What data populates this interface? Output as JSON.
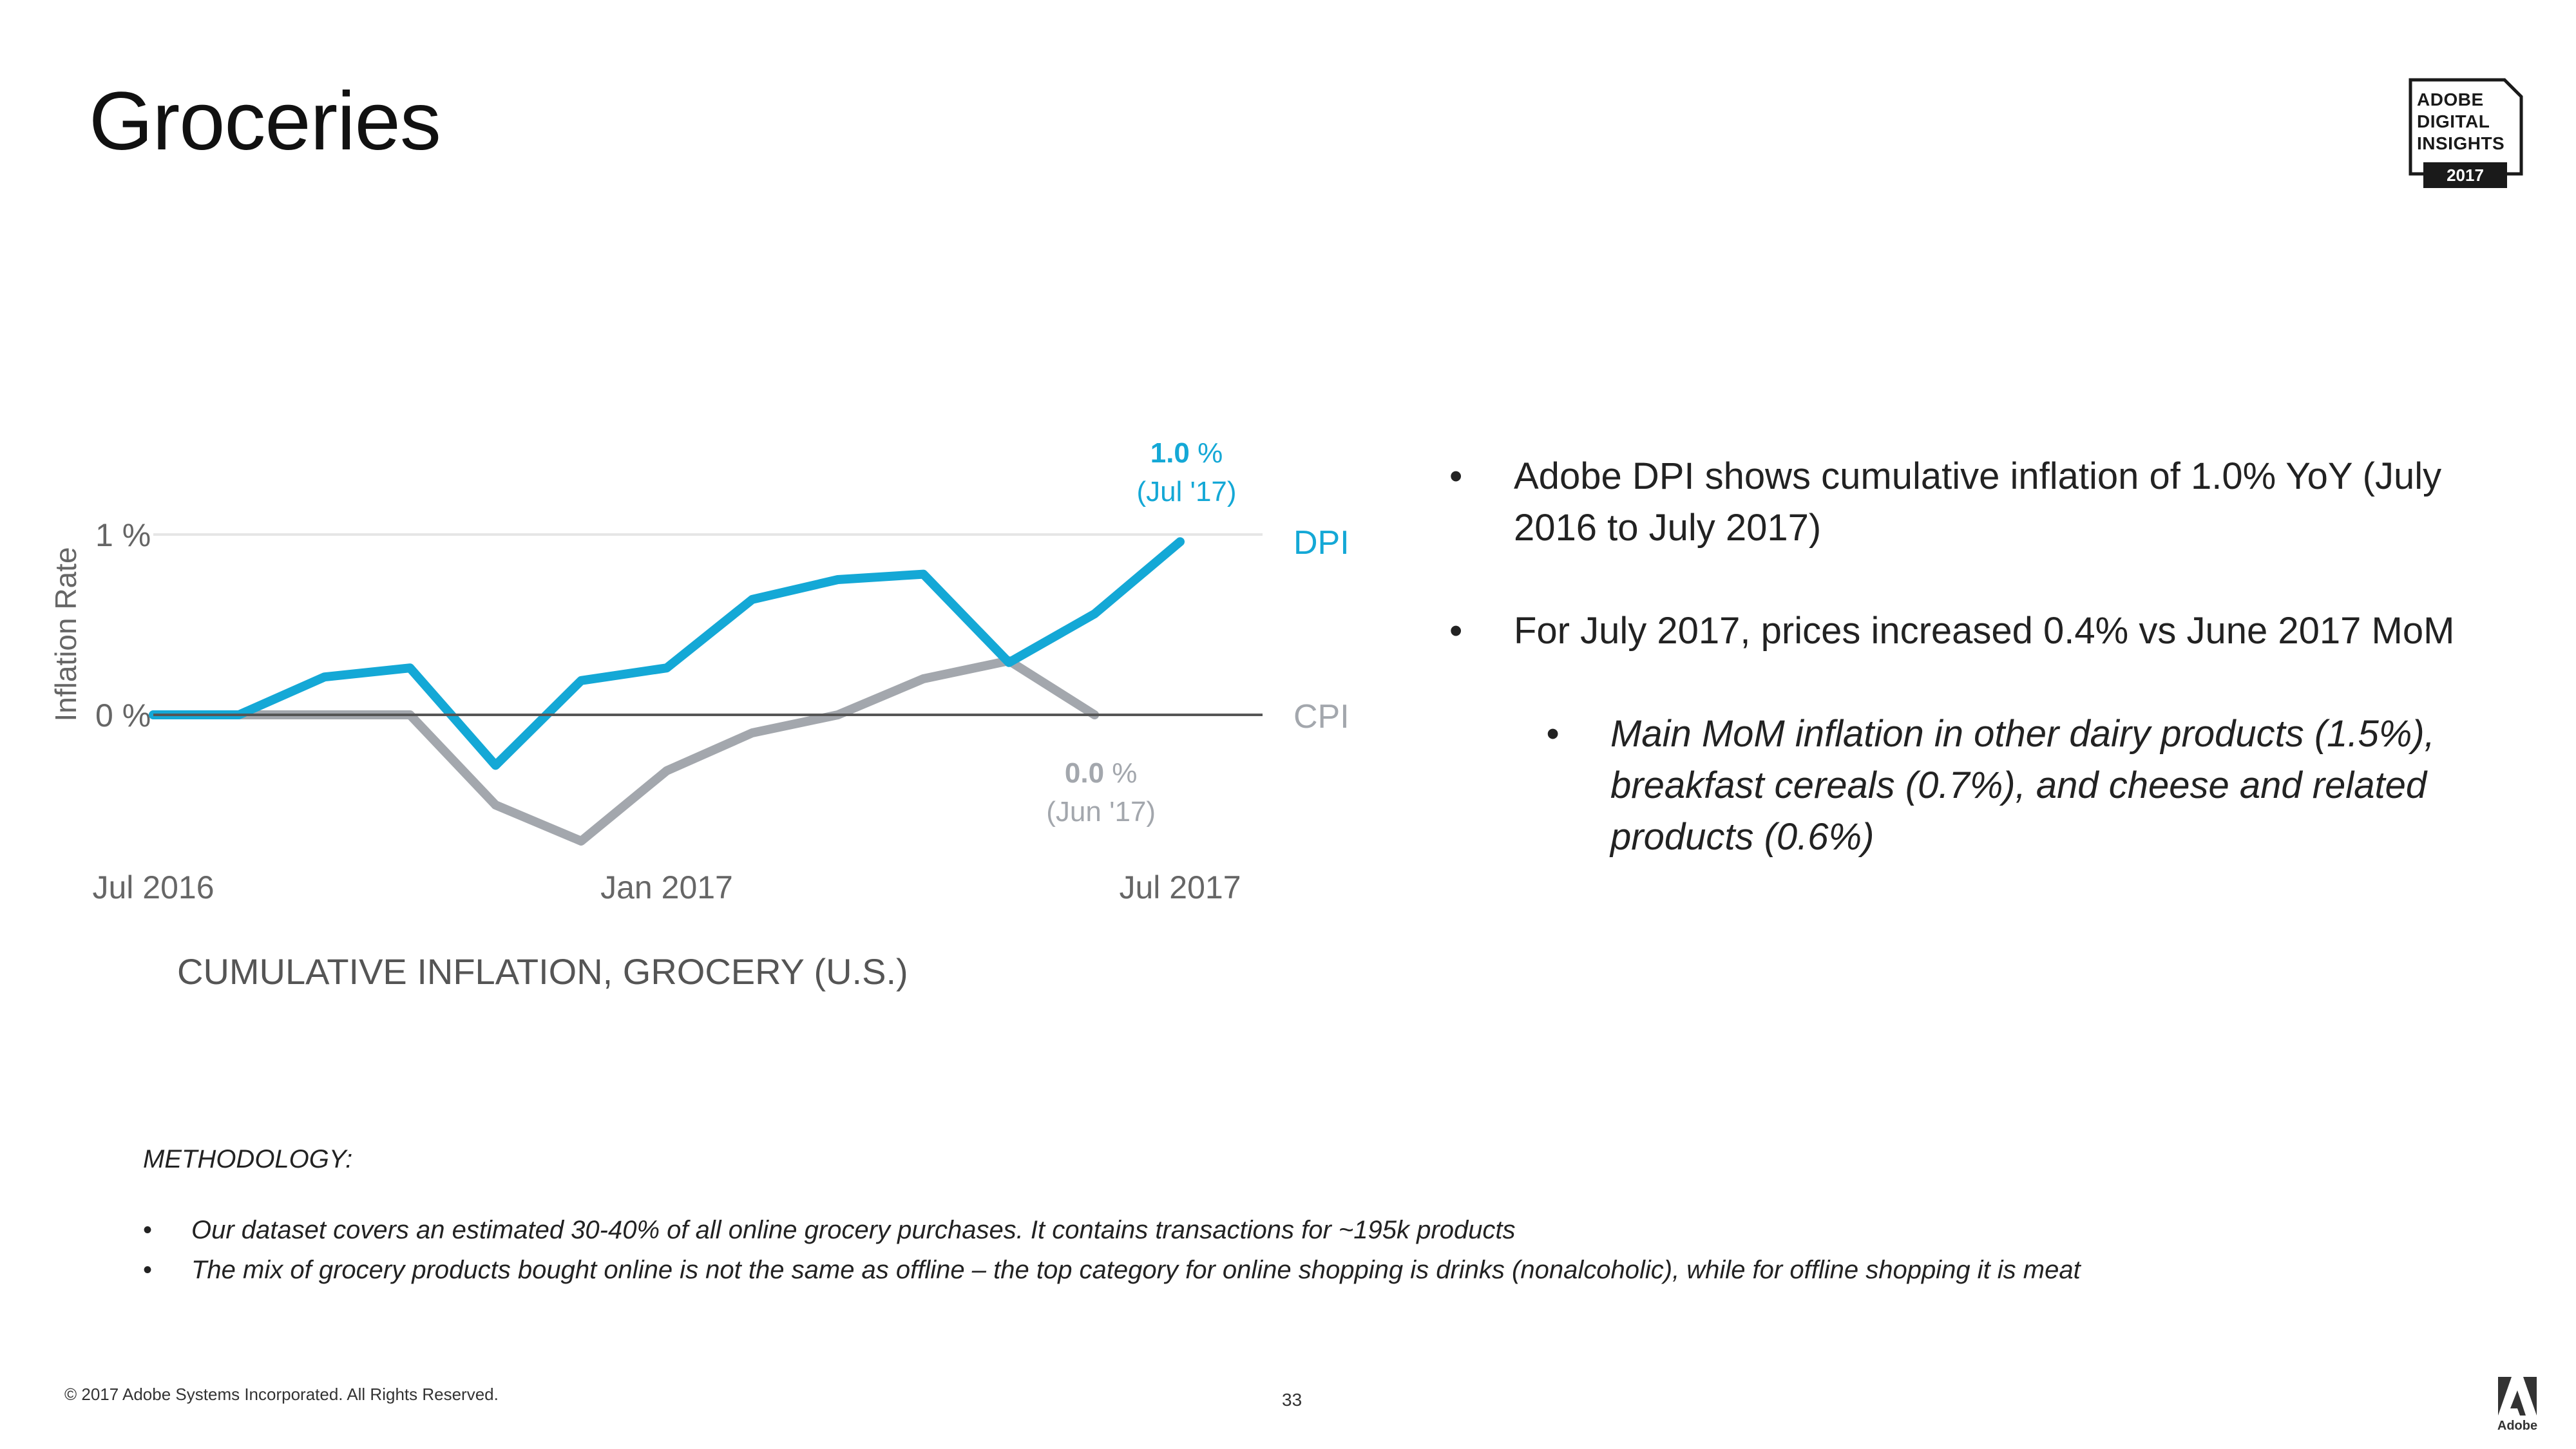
{
  "slide": {
    "title": "Groceries",
    "page_number": "33",
    "copyright": "© 2017 Adobe Systems Incorporated.  All Rights Reserved.",
    "badge": {
      "line1": "ADOBE",
      "line2": "DIGITAL",
      "line3": "INSIGHTS",
      "year": "2017"
    },
    "logo_word": "Adobe"
  },
  "bullets": [
    {
      "level": 1,
      "text": "Adobe DPI shows cumulative inflation of 1.0% YoY (July 2016 to July 2017)"
    },
    {
      "level": 1,
      "text": "For July 2017, prices increased 0.4% vs June 2017 MoM"
    },
    {
      "level": 2,
      "text": "Main MoM inflation in other dairy products (1.5%), breakfast cereals (0.7%), and cheese and related products (0.6%)"
    }
  ],
  "bullet_glyph": "•",
  "methodology": {
    "heading": "METHODOLOGY:",
    "items": [
      "Our dataset covers an estimated 30-40% of all online grocery purchases. It contains transactions for ~195k products",
      "The mix of grocery products bought online is not the same as offline – the top category for online shopping is drinks (nonalcoholic), while for offline shopping it is meat"
    ]
  },
  "colors": {
    "dpi": "#14a8d6",
    "cpi": "#a3a7ad",
    "baseline": "#555555",
    "gridline": "#e6e6e6",
    "axis_text": "#666666"
  },
  "chart_data": {
    "type": "line",
    "title": "CUMULATIVE INFLATION, GROCERY (U.S.)",
    "xlabel": "",
    "ylabel": "Inflation Rate",
    "ylim": [
      -0.7,
      1.0
    ],
    "y_ticks": [
      {
        "value": 1,
        "label": "1 %"
      },
      {
        "value": 0,
        "label": "0 %"
      }
    ],
    "x": [
      "Jul 2016",
      "Aug 2016",
      "Sep 2016",
      "Oct 2016",
      "Nov 2016",
      "Dec 2016",
      "Jan 2017",
      "Feb 2017",
      "Mar 2017",
      "Apr 2017",
      "May 2017",
      "Jun 2017",
      "Jul 2017"
    ],
    "x_tick_labels": [
      {
        "index": 0,
        "label": "Jul 2016"
      },
      {
        "index": 6,
        "label": "Jan 2017"
      },
      {
        "index": 12,
        "label": "Jul 2017"
      }
    ],
    "series": [
      {
        "name": "DPI",
        "values": [
          0.0,
          0.0,
          0.21,
          0.26,
          -0.28,
          0.19,
          0.26,
          0.64,
          0.75,
          0.78,
          0.29,
          0.56,
          0.96
        ]
      },
      {
        "name": "CPI",
        "values": [
          0.0,
          0.0,
          0.0,
          0.0,
          -0.5,
          -0.7,
          -0.31,
          -0.1,
          0.0,
          0.2,
          0.3,
          0.0,
          null
        ]
      }
    ],
    "annotations": [
      {
        "series": "DPI",
        "index": 12,
        "value": "1.0",
        "unit": "%",
        "date": "(Jul '17)"
      },
      {
        "series": "CPI",
        "index": 11,
        "value": "0.0",
        "unit": "%",
        "date": "(Jun '17)"
      }
    ]
  }
}
